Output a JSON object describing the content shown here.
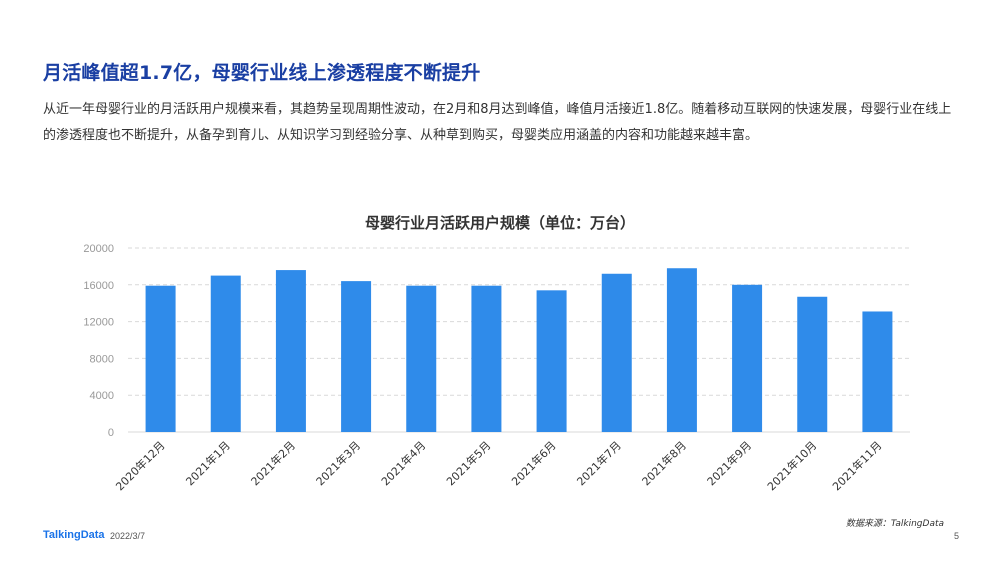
{
  "headline": "月活峰值超1.7亿，母婴行业线上渗透程度不断提升",
  "intro": "从近一年母婴行业的月活跃用户规模来看，其趋势呈现周期性波动，在2月和8月达到峰值，峰值月活接近1.8亿。随着移动互联网的快速发展，母婴行业在线上的渗透程度也不断提升，从备孕到育儿、从知识学习到经验分享、从种草到购买，母婴类应用涵盖的内容和功能越来越丰富。",
  "chart_data": {
    "type": "bar",
    "title": "母婴行业月活跃用户规模（单位：万台）",
    "categories": [
      "2020年12月",
      "2021年1月",
      "2021年2月",
      "2021年3月",
      "2021年4月",
      "2021年5月",
      "2021年6月",
      "2021年7月",
      "2021年8月",
      "2021年9月",
      "2021年10月",
      "2021年11月"
    ],
    "values": [
      15900,
      17000,
      17600,
      16400,
      15900,
      15900,
      15400,
      17200,
      17800,
      16000,
      14700,
      13100
    ],
    "yticks": [
      0,
      4000,
      8000,
      12000,
      16000,
      20000
    ],
    "ylim": [
      0,
      20000
    ],
    "grid": true,
    "bar_color": "#2f8bea",
    "grid_color": "#d9d9d9",
    "tick_color": "#999999",
    "label_color": "#333333"
  },
  "footer": {
    "logo": "TalkingData",
    "date": "2022/3/7",
    "source": "数据来源：TalkingData",
    "page": "5"
  }
}
